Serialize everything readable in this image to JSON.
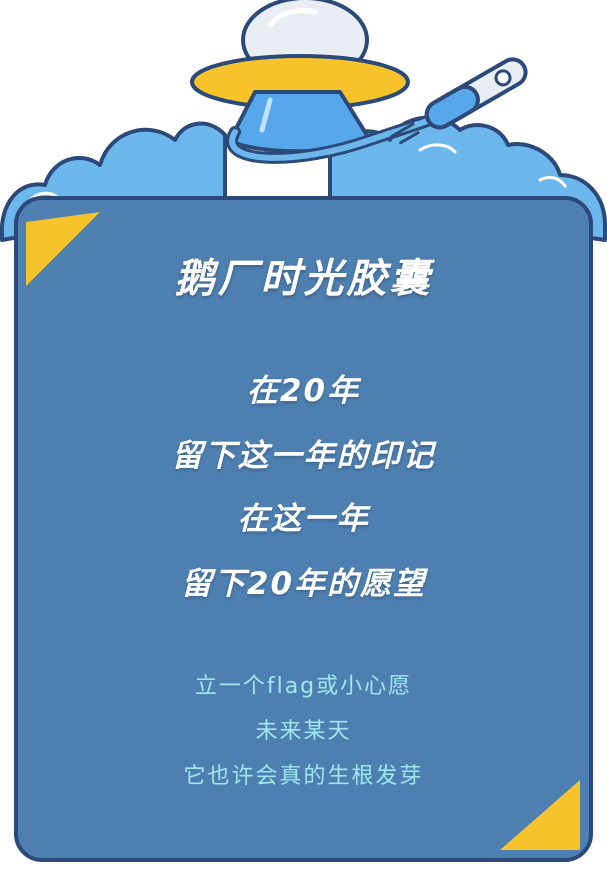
{
  "card": {
    "title": "鹅厂时光胶囊",
    "body_lines": [
      "在20年",
      "留下这一年的印记",
      "在这一年",
      "留下20年的愿望"
    ],
    "sub_lines": [
      "立一个flag或小心愿",
      "未来某天",
      "它也许会真的生根发芽"
    ]
  },
  "colors": {
    "card_bg": "#4d7fb1",
    "card_border": "#2c4a79",
    "cloud": "#6cb8ec",
    "accent_yellow": "#f7c32b",
    "sub_text": "#9fe7ef"
  },
  "icons": [
    "cloud-icon",
    "ufo-icon",
    "capsule-rocket-icon"
  ]
}
